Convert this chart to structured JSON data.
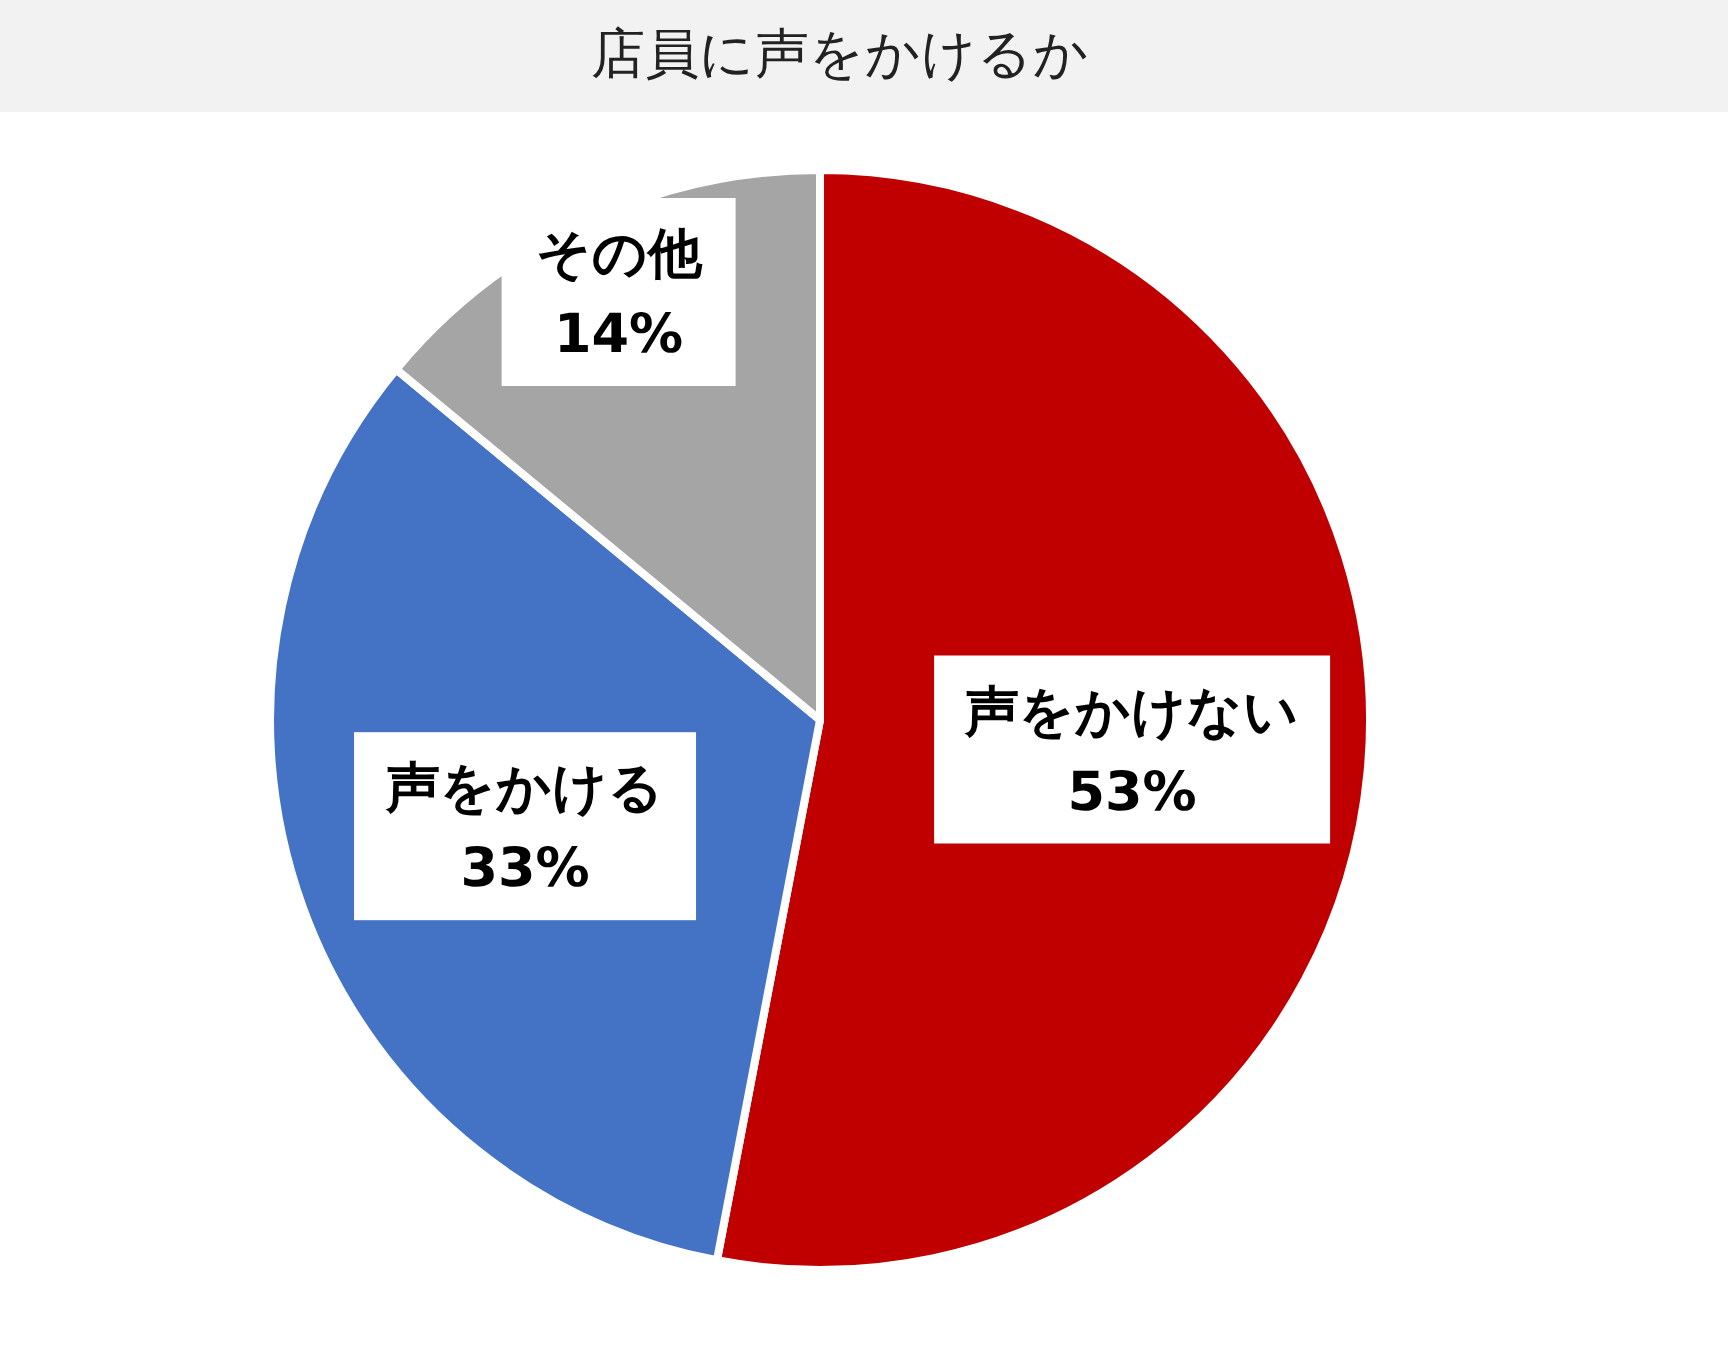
{
  "chart_data": {
    "type": "pie",
    "title": "店員に声をかけるか",
    "categories": [
      "声をかけない",
      "声をかける",
      "その他"
    ],
    "values": [
      53,
      33,
      14
    ],
    "colors": [
      "#c00000",
      "#4472c4",
      "#a5a5a5"
    ],
    "value_labels": [
      "53%",
      "33%",
      "14%"
    ]
  }
}
